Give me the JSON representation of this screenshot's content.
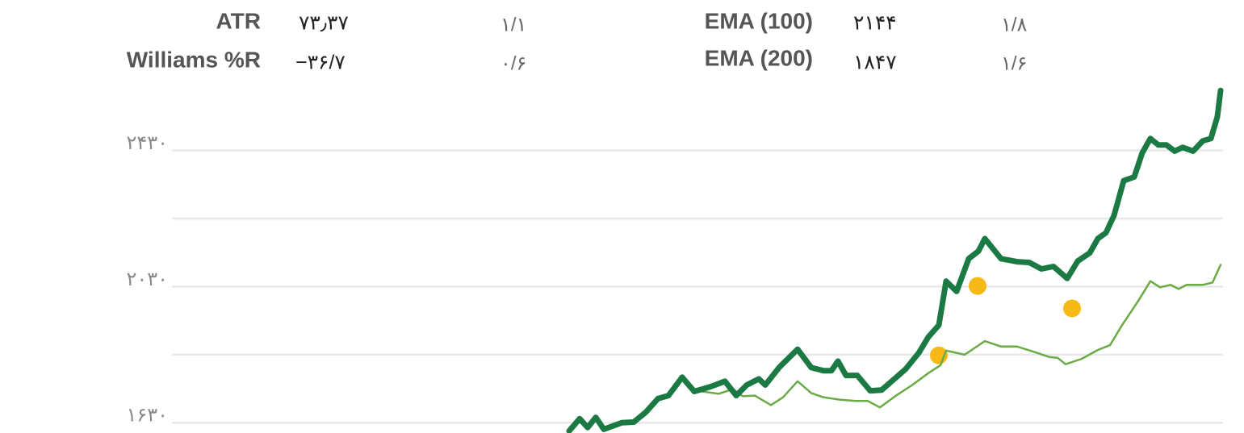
{
  "indicators": {
    "rows": [
      [
        "ATR",
        "۷۳٫۳۷",
        "۱/۱"
      ],
      [
        "Williams %R",
        "−۳۶/۷",
        "۰/۶"
      ],
      [
        "EMA (100)",
        "۲۱۴۴",
        "۱/۸"
      ],
      [
        "EMA (200)",
        "۱۸۴۷",
        "۱/۶"
      ]
    ]
  },
  "chart_data": {
    "type": "line",
    "xlim": [
      0,
      1302
    ],
    "ylim": [
      1600,
      2635
    ],
    "yticks": [
      {
        "value": 1630,
        "label": "۱۶۳۰"
      },
      {
        "value": 2030,
        "label": "۲۰۳۰"
      },
      {
        "value": 2430,
        "label": "۲۴۳۰"
      }
    ],
    "minor_yticks": [
      1830,
      2230
    ],
    "grid": true,
    "series": [
      {
        "type": "line",
        "color": "#1b7a44",
        "width": 7,
        "x": [
          492,
          505,
          515,
          525,
          535,
          557,
          572,
          587,
          602,
          615,
          632,
          647,
          667,
          685,
          699,
          712,
          727,
          735,
          752,
          775,
          792,
          807,
          817,
          825,
          835,
          849,
          865,
          879,
          895,
          909,
          925,
          937,
          950,
          959,
          972,
          987,
          999,
          1007,
          1027,
          1047,
          1062,
          1077,
          1092,
          1109,
          1122,
          1137,
          1147,
          1157,
          1167,
          1179,
          1192,
          1202,
          1212,
          1222,
          1232,
          1242,
          1252,
          1265,
          1277,
          1287,
          1295,
          1299
        ],
        "values": [
          1606,
          1642,
          1616,
          1646,
          1611,
          1630,
          1632,
          1661,
          1701,
          1710,
          1764,
          1722,
          1736,
          1752,
          1710,
          1741,
          1759,
          1741,
          1792,
          1846,
          1792,
          1783,
          1783,
          1811,
          1769,
          1769,
          1724,
          1726,
          1759,
          1788,
          1835,
          1882,
          1917,
          2046,
          2016,
          2112,
          2134,
          2171,
          2112,
          2103,
          2101,
          2082,
          2089,
          2054,
          2105,
          2129,
          2171,
          2188,
          2239,
          2341,
          2352,
          2423,
          2465,
          2446,
          2446,
          2428,
          2439,
          2428,
          2458,
          2465,
          2529,
          2606
        ]
      },
      {
        "type": "line",
        "color": "#6aab45",
        "width": 2.5,
        "x": [
          657,
          677,
          695,
          707,
          722,
          742,
          757,
          775,
          792,
          807,
          827,
          847,
          862,
          877,
          897,
          917,
          937,
          952,
          959,
          982,
          1007,
          1027,
          1047,
          1067,
          1087,
          1097,
          1107,
          1127,
          1147,
          1162,
          1177,
          1197,
          1212,
          1224,
          1237,
          1247,
          1257,
          1277,
          1289,
          1299
        ],
        "values": [
          1722,
          1715,
          1729,
          1708,
          1710,
          1682,
          1705,
          1752,
          1717,
          1705,
          1698,
          1694,
          1694,
          1675,
          1710,
          1741,
          1776,
          1799,
          1842,
          1830,
          1870,
          1854,
          1854,
          1839,
          1823,
          1821,
          1802,
          1818,
          1844,
          1858,
          1917,
          1988,
          2046,
          2028,
          2035,
          2023,
          2035,
          2035,
          2042,
          2094
        ]
      },
      {
        "type": "scatter",
        "color": "#f7b916",
        "width": 11,
        "x": [
          950,
          998,
          1115
        ],
        "values": [
          1828,
          2032,
          1966
        ]
      }
    ]
  }
}
